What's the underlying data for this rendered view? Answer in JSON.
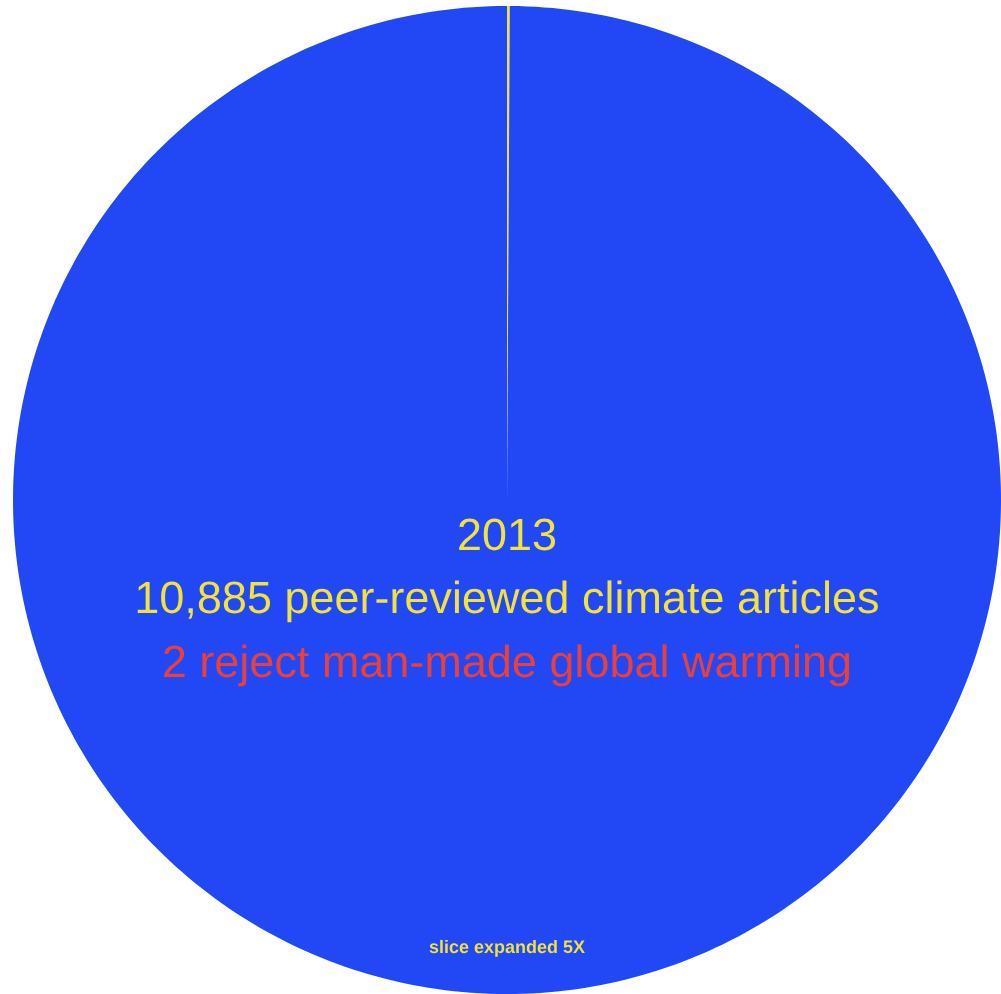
{
  "chart_data": {
    "type": "pie",
    "title": "2013",
    "subtitle": "10,885 peer-reviewed climate articles",
    "annotations": [
      "2 reject man-made global warming",
      "slice expanded 5X"
    ],
    "categories": [
      null,
      null
    ],
    "values": [
      0.09,
      99.91
    ],
    "colors": [
      "#f2e33a",
      "#2247f5"
    ]
  }
}
